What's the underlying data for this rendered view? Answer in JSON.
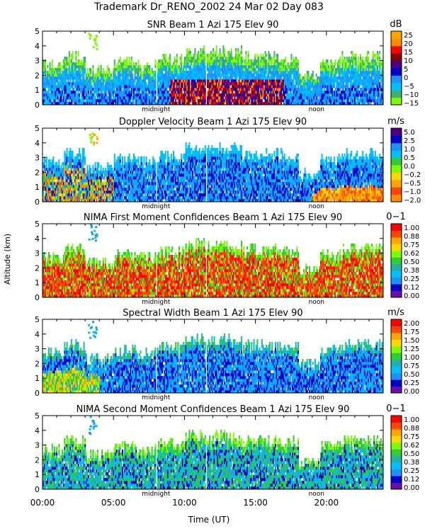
{
  "header": {
    "main_title": "Trademark Dr_RENO_2002  24 Mar 02 Day 083",
    "ylabel": "Altitude (km)",
    "xlabel": "Time (UT)"
  },
  "colors": {
    "palette_db": [
      "#7cfc00",
      "#3cb371",
      "#00bfff",
      "#1e90ff",
      "#0000cd",
      "#4b0082",
      "#8b0000",
      "#ff0000",
      "#ff8c00",
      "#ffa500"
    ],
    "palette_vel": [
      "#ff8c00",
      "#ff4500",
      "#ffa500",
      "#ffd700",
      "#7cfc00",
      "#32cd32",
      "#00bfff",
      "#1e90ff",
      "#0000cd",
      "#4b0082"
    ],
    "palette_conf": [
      "#6a0dad",
      "#0000cd",
      "#1e90ff",
      "#00bfff",
      "#20b2aa",
      "#32cd32",
      "#7cfc00",
      "#ffd700",
      "#ffa500",
      "#ff4500",
      "#ff0000"
    ],
    "palette_sw": [
      "#6a0dad",
      "#0000cd",
      "#1e90ff",
      "#00bfff",
      "#20b2aa",
      "#32cd32",
      "#7cfc00",
      "#ffd700",
      "#ffa500",
      "#ff4500",
      "#ff0000"
    ]
  },
  "chart_data": [
    {
      "type": "heatmap",
      "title": "SNR Beam 1 Azi 175 Elev 90",
      "unit": "dB",
      "colorbar_ticks": [
        "25",
        "20",
        "15",
        "10",
        "5",
        "0",
        "−5",
        "−10",
        "−15"
      ],
      "palette": "palette_db",
      "ylim": [
        0,
        5
      ],
      "yticks": [
        "0",
        "1",
        "2",
        "3",
        "4",
        "5"
      ],
      "xlim": [
        0,
        24
      ],
      "markers": [
        "midnight",
        "noon"
      ],
      "profile": "snr"
    },
    {
      "type": "heatmap",
      "title": "Doppler Velocity Beam 1 Azi 175 Elev 90",
      "unit": "m/s",
      "colorbar_ticks": [
        "5.0",
        "2.5",
        "1.0",
        "0.5",
        "0.0",
        "−0.2",
        "−0.5",
        "−1.0",
        "−2.0"
      ],
      "palette": "palette_vel",
      "ylim": [
        0,
        5
      ],
      "yticks": [
        "0",
        "1",
        "2",
        "3",
        "4",
        "5"
      ],
      "xlim": [
        0,
        24
      ],
      "markers": [
        "midnight",
        "noon"
      ],
      "profile": "velocity"
    },
    {
      "type": "heatmap",
      "title": "NIMA First Moment Confidences Beam 1 Azi 175 Elev 90",
      "unit": "0−1",
      "colorbar_ticks": [
        "1.00",
        "0.88",
        "0.75",
        "0.62",
        "0.50",
        "0.38",
        "0.25",
        "0.12",
        "0.00"
      ],
      "palette": "palette_conf",
      "ylim": [
        0,
        5
      ],
      "yticks": [
        "0",
        "1",
        "2",
        "3",
        "4",
        "5"
      ],
      "xlim": [
        0,
        24
      ],
      "markers": [
        "midnight",
        "noon"
      ],
      "profile": "conf1"
    },
    {
      "type": "heatmap",
      "title": "Spectral Width Beam 1 Azi 175 Elev 90",
      "unit": "m/s",
      "colorbar_ticks": [
        "2.00",
        "1.75",
        "1.50",
        "1.25",
        "1.00",
        "0.75",
        "0.50",
        "0.25",
        "0.00"
      ],
      "palette": "palette_sw",
      "ylim": [
        0,
        5
      ],
      "yticks": [
        "0",
        "1",
        "2",
        "3",
        "4",
        "5"
      ],
      "xlim": [
        0,
        24
      ],
      "markers": [
        "midnight",
        "noon"
      ],
      "profile": "width"
    },
    {
      "type": "heatmap",
      "title": "NIMA Second Moment Confidences Beam 1 Azi 175 Elev 90",
      "unit": "0−1",
      "colorbar_ticks": [
        "1.00",
        "0.88",
        "0.75",
        "0.62",
        "0.50",
        "0.38",
        "0.25",
        "0.12",
        "0.00"
      ],
      "palette": "palette_conf",
      "ylim": [
        0,
        5
      ],
      "yticks": [
        "0",
        "1",
        "2",
        "3",
        "4",
        "5"
      ],
      "xlim": [
        0,
        24
      ],
      "markers": [
        "midnight",
        "noon"
      ],
      "profile": "conf2"
    }
  ],
  "x_axis": {
    "ticks": [
      "00:00",
      "05:00",
      "10:00",
      "15:00",
      "20:00"
    ],
    "tick_values": [
      0,
      5,
      10,
      15,
      20
    ]
  }
}
